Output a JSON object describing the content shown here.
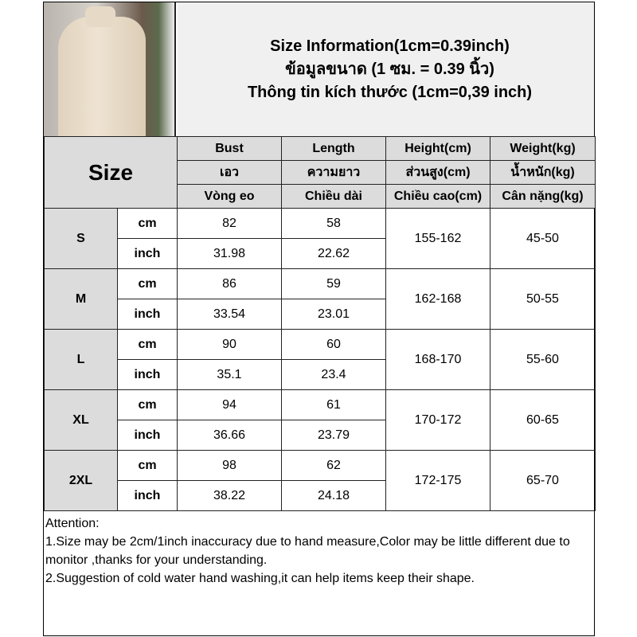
{
  "title_lines": [
    "Size Information(1cm=0.39inch)",
    "ข้อมูลขนาด (1 ซม. = 0.39 นิ้ว)",
    "Thông tin kích thước (1cm=0,39 inch)"
  ],
  "size_header": "Size",
  "columns": [
    {
      "en": "Bust",
      "th": "เอว",
      "vi": "Vòng eo"
    },
    {
      "en": "Length",
      "th": "ความยาว",
      "vi": "Chiều dài"
    },
    {
      "en": "Height(cm)",
      "th": "ส่วนสูง(cm)",
      "vi": "Chiều cao(cm)"
    },
    {
      "en": "Weight(kg)",
      "th": "น้ำหนัก(kg)",
      "vi": "Cân nặng(kg)"
    }
  ],
  "units": [
    "cm",
    "inch"
  ],
  "rows": [
    {
      "size": "S",
      "cm": [
        "82",
        "58"
      ],
      "inch": [
        "31.98",
        "22.62"
      ],
      "height": "155-162",
      "weight": "45-50"
    },
    {
      "size": "M",
      "cm": [
        "86",
        "59"
      ],
      "inch": [
        "33.54",
        "23.01"
      ],
      "height": "162-168",
      "weight": "50-55"
    },
    {
      "size": "L",
      "cm": [
        "90",
        "60"
      ],
      "inch": [
        "35.1",
        "23.4"
      ],
      "height": "168-170",
      "weight": "55-60"
    },
    {
      "size": "XL",
      "cm": [
        "94",
        "61"
      ],
      "inch": [
        "36.66",
        "23.79"
      ],
      "height": "170-172",
      "weight": "60-65"
    },
    {
      "size": "2XL",
      "cm": [
        "98",
        "62"
      ],
      "inch": [
        "38.22",
        "24.18"
      ],
      "height": "172-175",
      "weight": "65-70"
    }
  ],
  "notes": [
    "Attention:",
    "1.Size may be 2cm/1inch inaccuracy due to hand measure,Color may be little different due to monitor ,thanks for your understanding.",
    "2.Suggestion of cold water hand washing,it can help items keep their shape."
  ]
}
